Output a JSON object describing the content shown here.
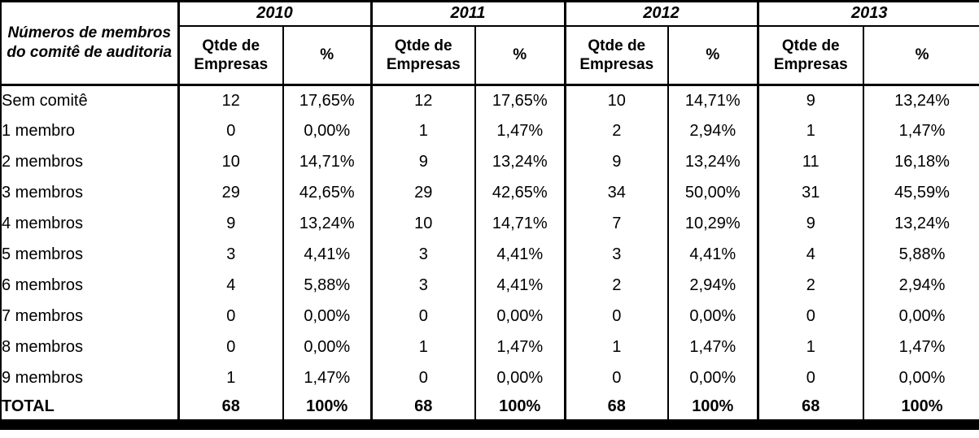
{
  "table": {
    "corner_header": "Números de membros do comitê de auditoria",
    "col_qty": "Qtde de Empresas",
    "col_pct": "%",
    "years": [
      "2010",
      "2011",
      "2012",
      "2013"
    ],
    "rows": [
      {
        "label": "Sem comitê",
        "values": [
          "12",
          "17,65%",
          "12",
          "17,65%",
          "10",
          "14,71%",
          "9",
          "13,24%"
        ]
      },
      {
        "label": "1 membro",
        "values": [
          "0",
          "0,00%",
          "1",
          "1,47%",
          "2",
          "2,94%",
          "1",
          "1,47%"
        ]
      },
      {
        "label": "2 membros",
        "values": [
          "10",
          "14,71%",
          "9",
          "13,24%",
          "9",
          "13,24%",
          "11",
          "16,18%"
        ]
      },
      {
        "label": "3 membros",
        "values": [
          "29",
          "42,65%",
          "29",
          "42,65%",
          "34",
          "50,00%",
          "31",
          "45,59%"
        ]
      },
      {
        "label": "4 membros",
        "values": [
          "9",
          "13,24%",
          "10",
          "14,71%",
          "7",
          "10,29%",
          "9",
          "13,24%"
        ]
      },
      {
        "label": "5 membros",
        "values": [
          "3",
          "4,41%",
          "3",
          "4,41%",
          "3",
          "4,41%",
          "4",
          "5,88%"
        ]
      },
      {
        "label": "6 membros",
        "values": [
          "4",
          "5,88%",
          "3",
          "4,41%",
          "2",
          "2,94%",
          "2",
          "2,94%"
        ]
      },
      {
        "label": "7 membros",
        "values": [
          "0",
          "0,00%",
          "0",
          "0,00%",
          "0",
          "0,00%",
          "0",
          "0,00%"
        ]
      },
      {
        "label": "8 membros",
        "values": [
          "0",
          "0,00%",
          "1",
          "1,47%",
          "1",
          "1,47%",
          "1",
          "1,47%"
        ]
      },
      {
        "label": "9 membros",
        "values": [
          "1",
          "1,47%",
          "0",
          "0,00%",
          "0",
          "0,00%",
          "0",
          "0,00%"
        ]
      },
      {
        "label": "TOTAL",
        "values": [
          "68",
          "100%",
          "68",
          "100%",
          "68",
          "100%",
          "68",
          "100%"
        ],
        "bold": true
      }
    ]
  }
}
